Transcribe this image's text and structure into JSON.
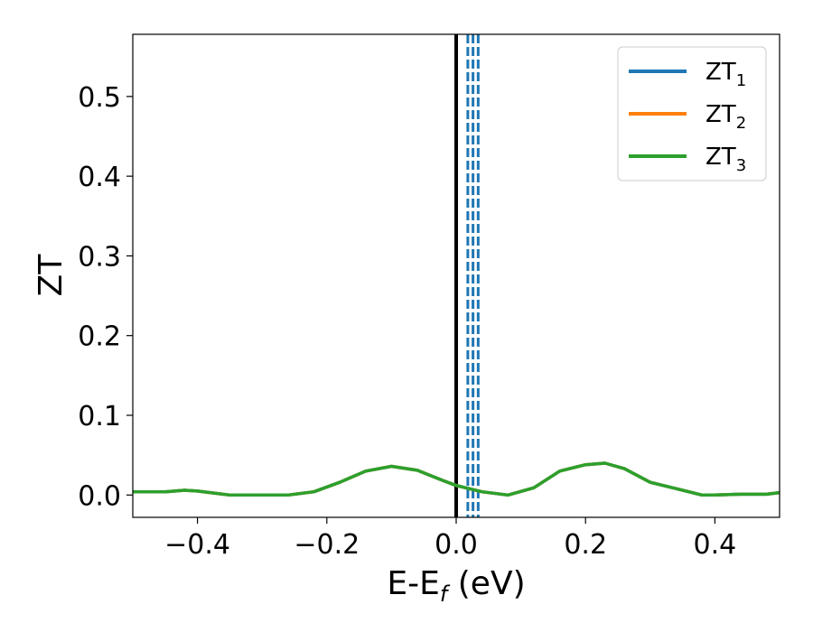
{
  "chart_data": {
    "type": "line",
    "xlabel": {
      "main": "E-E",
      "sub": "f",
      "suffix": " (eV)"
    },
    "ylabel": "ZT",
    "xlim": [
      -0.5,
      0.5
    ],
    "ylim": [
      -0.028,
      0.578
    ],
    "xticks": [
      {
        "value": -0.4,
        "label": "−0.4"
      },
      {
        "value": -0.2,
        "label": "−0.2"
      },
      {
        "value": 0.0,
        "label": "0.0"
      },
      {
        "value": 0.2,
        "label": "0.2"
      },
      {
        "value": 0.4,
        "label": "0.4"
      }
    ],
    "yticks": [
      {
        "value": 0.0,
        "label": "0.0"
      },
      {
        "value": 0.1,
        "label": "0.1"
      },
      {
        "value": 0.2,
        "label": "0.2"
      },
      {
        "value": 0.3,
        "label": "0.3"
      },
      {
        "value": 0.4,
        "label": "0.4"
      },
      {
        "value": 0.5,
        "label": "0.5"
      }
    ],
    "grid": false,
    "legend_position": "top-right",
    "x": [
      -0.5,
      -0.45,
      -0.42,
      -0.4,
      -0.35,
      -0.3,
      -0.26,
      -0.22,
      -0.18,
      -0.14,
      -0.1,
      -0.06,
      -0.02,
      0.0,
      0.04,
      0.08,
      0.12,
      0.16,
      0.2,
      0.23,
      0.26,
      0.3,
      0.34,
      0.38,
      0.4,
      0.44,
      0.48,
      0.5
    ],
    "series": [
      {
        "name": "ZT",
        "sub": "1",
        "color": "#1f77b4",
        "values": [
          0.004,
          0.004,
          0.006,
          0.005,
          0.0,
          0.0,
          0.0,
          0.004,
          0.016,
          0.03,
          0.036,
          0.031,
          0.018,
          0.012,
          0.004,
          0.0,
          0.009,
          0.03,
          0.038,
          0.04,
          0.033,
          0.016,
          0.008,
          0.0,
          0.0,
          0.001,
          0.001,
          0.003
        ]
      },
      {
        "name": "ZT",
        "sub": "2",
        "color": "#ff7f0e",
        "values": [
          0.004,
          0.004,
          0.006,
          0.005,
          0.0,
          0.0,
          0.0,
          0.004,
          0.016,
          0.03,
          0.036,
          0.031,
          0.018,
          0.012,
          0.004,
          0.0,
          0.009,
          0.03,
          0.038,
          0.04,
          0.033,
          0.016,
          0.008,
          0.0,
          0.0,
          0.001,
          0.001,
          0.003
        ]
      },
      {
        "name": "ZT",
        "sub": "3",
        "color": "#2ca02c",
        "values": [
          0.004,
          0.004,
          0.006,
          0.005,
          0.0,
          0.0,
          0.0,
          0.004,
          0.016,
          0.03,
          0.036,
          0.031,
          0.018,
          0.012,
          0.004,
          0.0,
          0.009,
          0.03,
          0.038,
          0.04,
          0.033,
          0.016,
          0.008,
          0.0,
          0.0,
          0.001,
          0.001,
          0.003
        ]
      }
    ],
    "vlines": [
      {
        "x": 0.0,
        "color": "#000000",
        "style": "solid"
      },
      {
        "x": 0.018,
        "color": "#1f77b4",
        "style": "dashed"
      },
      {
        "x": 0.026,
        "color": "#1f77b4",
        "style": "dashed"
      },
      {
        "x": 0.034,
        "color": "#1f77b4",
        "style": "dashed"
      }
    ]
  }
}
